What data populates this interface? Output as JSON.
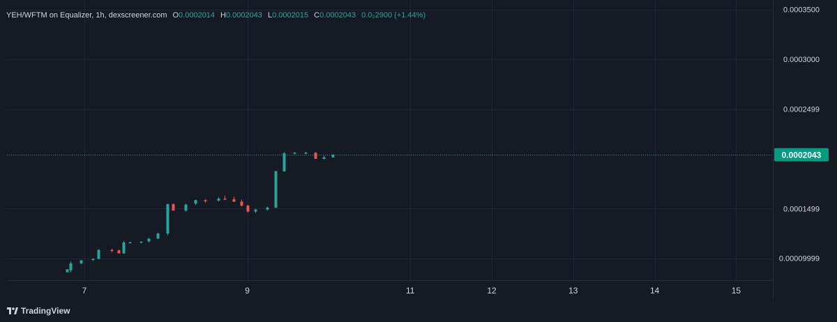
{
  "legend": {
    "symbol": "YEH/WFTM on Equalizer, 1h, dexscreener.com",
    "open_label": "O",
    "open_value": "0.0002014",
    "high_label": "H",
    "high_value": "0.0002043",
    "low_label": "L",
    "low_value": "0.0002015",
    "close_label": "C",
    "close_value": "0.0002043",
    "change": "0.0₂2900 (+1.44%)"
  },
  "branding": {
    "name": "TradingView"
  },
  "colors": {
    "background": "#161a25",
    "grid": "#232733",
    "up": "#26a69a",
    "down": "#ef5350",
    "text": "#d1d4dc",
    "price_tag": "#089981"
  },
  "chart_data": {
    "type": "candlestick",
    "y_axis": {
      "ticks": [
        9.999e-05,
        0.0001499,
        0.0002499,
        0.0003,
        0.00035
      ],
      "tick_labels": [
        "0.00009999",
        "0.0001499",
        "0.0002499",
        "0.0003000",
        "0.0003500"
      ],
      "range": [
        7.81e-05,
        0.000356
      ]
    },
    "x_axis": {
      "ticks": [
        7,
        9,
        11,
        12,
        13,
        14,
        15
      ],
      "tick_labels": [
        "7",
        "9",
        "11",
        "12",
        "13",
        "14",
        "15"
      ],
      "range": [
        6.05,
        15.45
      ]
    },
    "last_price": {
      "value": 0.0002043,
      "label": "0.0002043"
    },
    "candles": [
      {
        "t": 6.79,
        "o": 8.6e-05,
        "h": 8.9e-05,
        "l": 8.6e-05,
        "c": 8.9e-05
      },
      {
        "t": 6.83,
        "o": 8.8e-05,
        "h": 9.7e-05,
        "l": 8.6e-05,
        "c": 9.5e-05
      },
      {
        "t": 6.96,
        "o": 9.5e-05,
        "h": 9.85e-05,
        "l": 9.4e-05,
        "c": 9.8e-05
      },
      {
        "t": 7.1,
        "o": 9.85e-05,
        "h": 0.0001,
        "l": 9.75e-05,
        "c": 9.95e-05
      },
      {
        "t": 7.17,
        "o": 9.95e-05,
        "h": 0.0001092,
        "l": 9.9e-05,
        "c": 0.0001085
      },
      {
        "t": 7.33,
        "o": 0.0001085,
        "h": 0.0001095,
        "l": 0.000106,
        "c": 0.000108
      },
      {
        "t": 7.42,
        "o": 0.000108,
        "h": 0.000109,
        "l": 0.000105,
        "c": 0.000105
      },
      {
        "t": 7.48,
        "o": 0.000105,
        "h": 0.0001175,
        "l": 0.0001045,
        "c": 0.000116
      },
      {
        "t": 7.56,
        "o": 0.000116,
        "h": 0.0001165,
        "l": 0.000115,
        "c": 0.0001162
      },
      {
        "t": 7.69,
        "o": 0.000116,
        "h": 0.000117,
        "l": 0.000115,
        "c": 0.0001168
      },
      {
        "t": 7.79,
        "o": 0.000117,
        "h": 0.0001205,
        "l": 0.000116,
        "c": 0.0001198
      },
      {
        "t": 7.9,
        "o": 0.0001198,
        "h": 0.000126,
        "l": 0.0001195,
        "c": 0.000125
      },
      {
        "t": 8.02,
        "o": 0.000125,
        "h": 0.000155,
        "l": 0.000123,
        "c": 0.0001545
      },
      {
        "t": 8.09,
        "o": 0.0001545,
        "h": 0.000155,
        "l": 0.000148,
        "c": 0.000148
      },
      {
        "t": 8.24,
        "o": 0.000148,
        "h": 0.000155,
        "l": 0.000147,
        "c": 0.000154
      },
      {
        "t": 8.36,
        "o": 0.000155,
        "h": 0.000159,
        "l": 0.0001535,
        "c": 0.0001585
      },
      {
        "t": 8.48,
        "o": 0.0001585,
        "h": 0.0001595,
        "l": 0.000156,
        "c": 0.000158
      },
      {
        "t": 8.64,
        "o": 0.000158,
        "h": 0.0001615,
        "l": 0.000157,
        "c": 0.00016
      },
      {
        "t": 8.72,
        "o": 0.00016,
        "h": 0.000163,
        "l": 0.000159,
        "c": 0.0001595
      },
      {
        "t": 8.83,
        "o": 0.0001595,
        "h": 0.000162,
        "l": 0.0001565,
        "c": 0.000157
      },
      {
        "t": 8.93,
        "o": 0.000157,
        "h": 0.000159,
        "l": 0.000152,
        "c": 0.000153
      },
      {
        "t": 9.0,
        "o": 0.000153,
        "h": 0.000154,
        "l": 0.000146,
        "c": 0.000147
      },
      {
        "t": 9.1,
        "o": 0.000147,
        "h": 0.00015,
        "l": 0.0001455,
        "c": 0.000149
      },
      {
        "t": 9.24,
        "o": 0.000149,
        "h": 0.000152,
        "l": 0.000148,
        "c": 0.000151
      },
      {
        "t": 9.35,
        "o": 0.000151,
        "h": 0.000188,
        "l": 0.0001505,
        "c": 0.0001875
      },
      {
        "t": 9.45,
        "o": 0.0001875,
        "h": 0.000207,
        "l": 0.000187,
        "c": 0.0002055
      },
      {
        "t": 9.58,
        "o": 0.0002055,
        "h": 0.000207,
        "l": 0.000205,
        "c": 0.000206
      },
      {
        "t": 9.71,
        "o": 0.0002055,
        "h": 0.000207,
        "l": 0.0002045,
        "c": 0.0002062
      },
      {
        "t": 9.83,
        "o": 0.000206,
        "h": 0.000207,
        "l": 0.0002,
        "c": 0.0002
      },
      {
        "t": 9.94,
        "o": 0.0002,
        "h": 0.000203,
        "l": 0.0001995,
        "c": 0.0002015
      },
      {
        "t": 10.05,
        "o": 0.0002014,
        "h": 0.0002043,
        "l": 0.0002015,
        "c": 0.0002043
      }
    ]
  }
}
